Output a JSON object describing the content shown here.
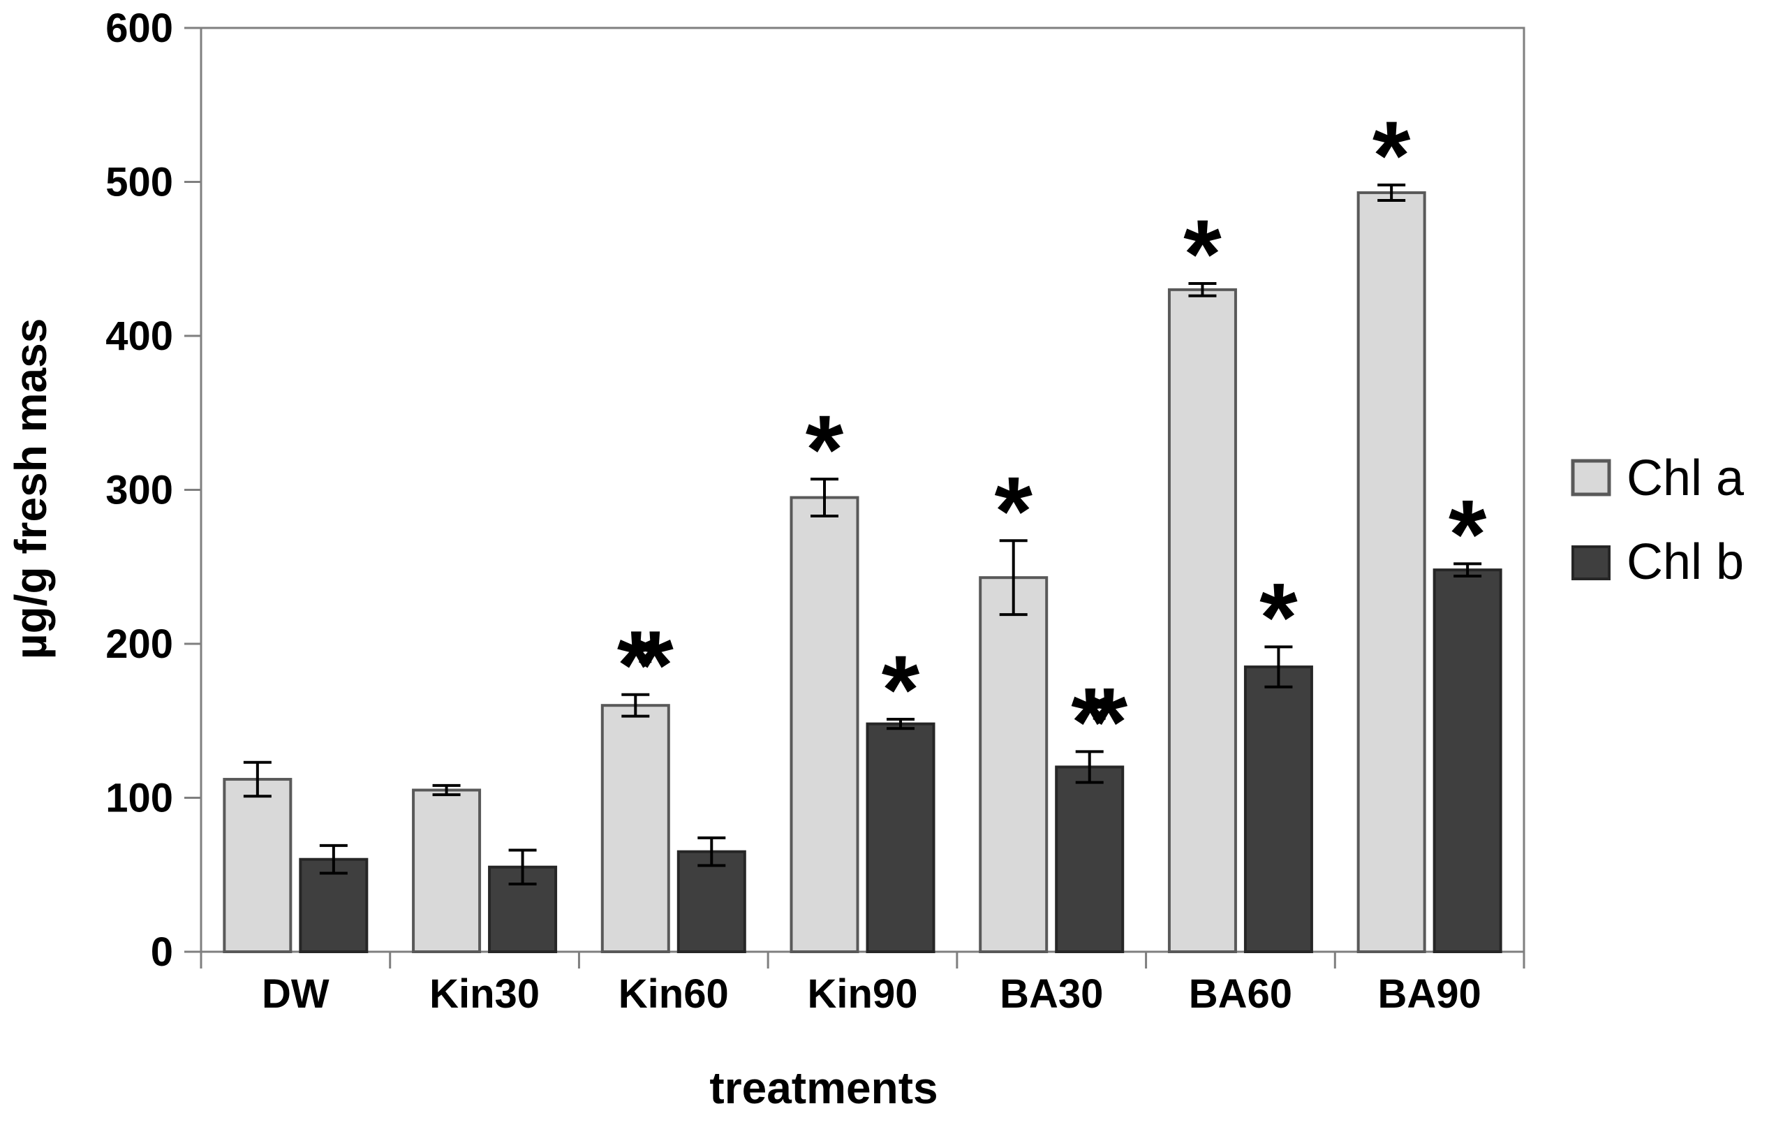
{
  "figure": {
    "background": "#ffffff"
  },
  "chart_data": {
    "type": "bar",
    "title": "",
    "xlabel": "treatments",
    "ylabel": "µg/g fresh mass",
    "ylim": [
      0,
      600
    ],
    "yticks": [
      0,
      100,
      200,
      300,
      400,
      500,
      600
    ],
    "categories": [
      "DW",
      "Kin30",
      "Kin60",
      "Kin90",
      "BA30",
      "BA60",
      "BA90"
    ],
    "grid": false,
    "legend_position": "right-outside",
    "axis_color": "#7f7f7f",
    "error_bar_color": "#000000",
    "text_color": "#000000",
    "series": [
      {
        "name": "Chl a",
        "color": "#d9d9d9",
        "border_color": "#595959",
        "values": [
          112,
          105,
          160,
          295,
          243,
          430,
          493
        ],
        "errors": [
          11,
          3,
          7,
          12,
          24,
          4,
          5
        ],
        "significance": [
          "",
          "",
          "**",
          "*",
          "*",
          "*",
          "*"
        ]
      },
      {
        "name": "Chl b",
        "color": "#3f3f3f",
        "border_color": "#262626",
        "values": [
          60,
          55,
          65,
          148,
          120,
          185,
          248
        ],
        "errors": [
          9,
          11,
          9,
          3,
          10,
          13,
          4
        ],
        "significance": [
          "",
          "",
          "",
          "*",
          "**",
          "*",
          "*"
        ]
      }
    ]
  }
}
